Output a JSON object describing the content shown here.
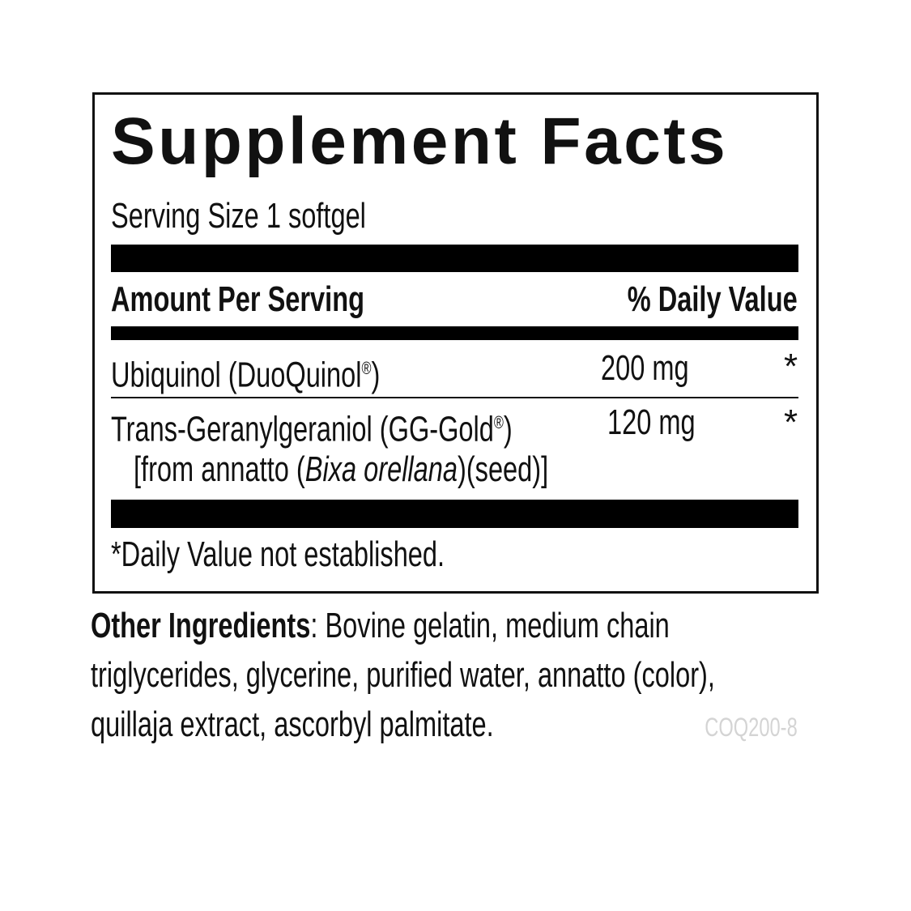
{
  "label": {
    "title": "Supplement Facts",
    "serving_size": "Serving Size 1 softgel",
    "header": {
      "amount": "Amount Per Serving",
      "daily_value": "% Daily Value"
    },
    "rows": [
      {
        "name": "Ubiquinol (DuoQuinol",
        "mark": "®",
        "name_end": ")",
        "amount": "200 mg",
        "dv": "*"
      },
      {
        "name": "Trans-Geranylgeraniol (GG-Gold",
        "mark": "®",
        "name_end": ")",
        "amount": "120 mg",
        "dv": "*",
        "sub_prefix": "[from annatto (",
        "sub_italic": "Bixa orellana",
        "sub_suffix": ")(seed)]"
      }
    ],
    "footnote": "*Daily Value not established."
  },
  "other_ingredients": {
    "label": "Other Ingredients",
    "text": ": Bovine gelatin, medium chain triglycerides, glycerine, purified water, annatto (color), quillaja extract, ascorbyl palmitate."
  },
  "product_code": "COQ200-8"
}
